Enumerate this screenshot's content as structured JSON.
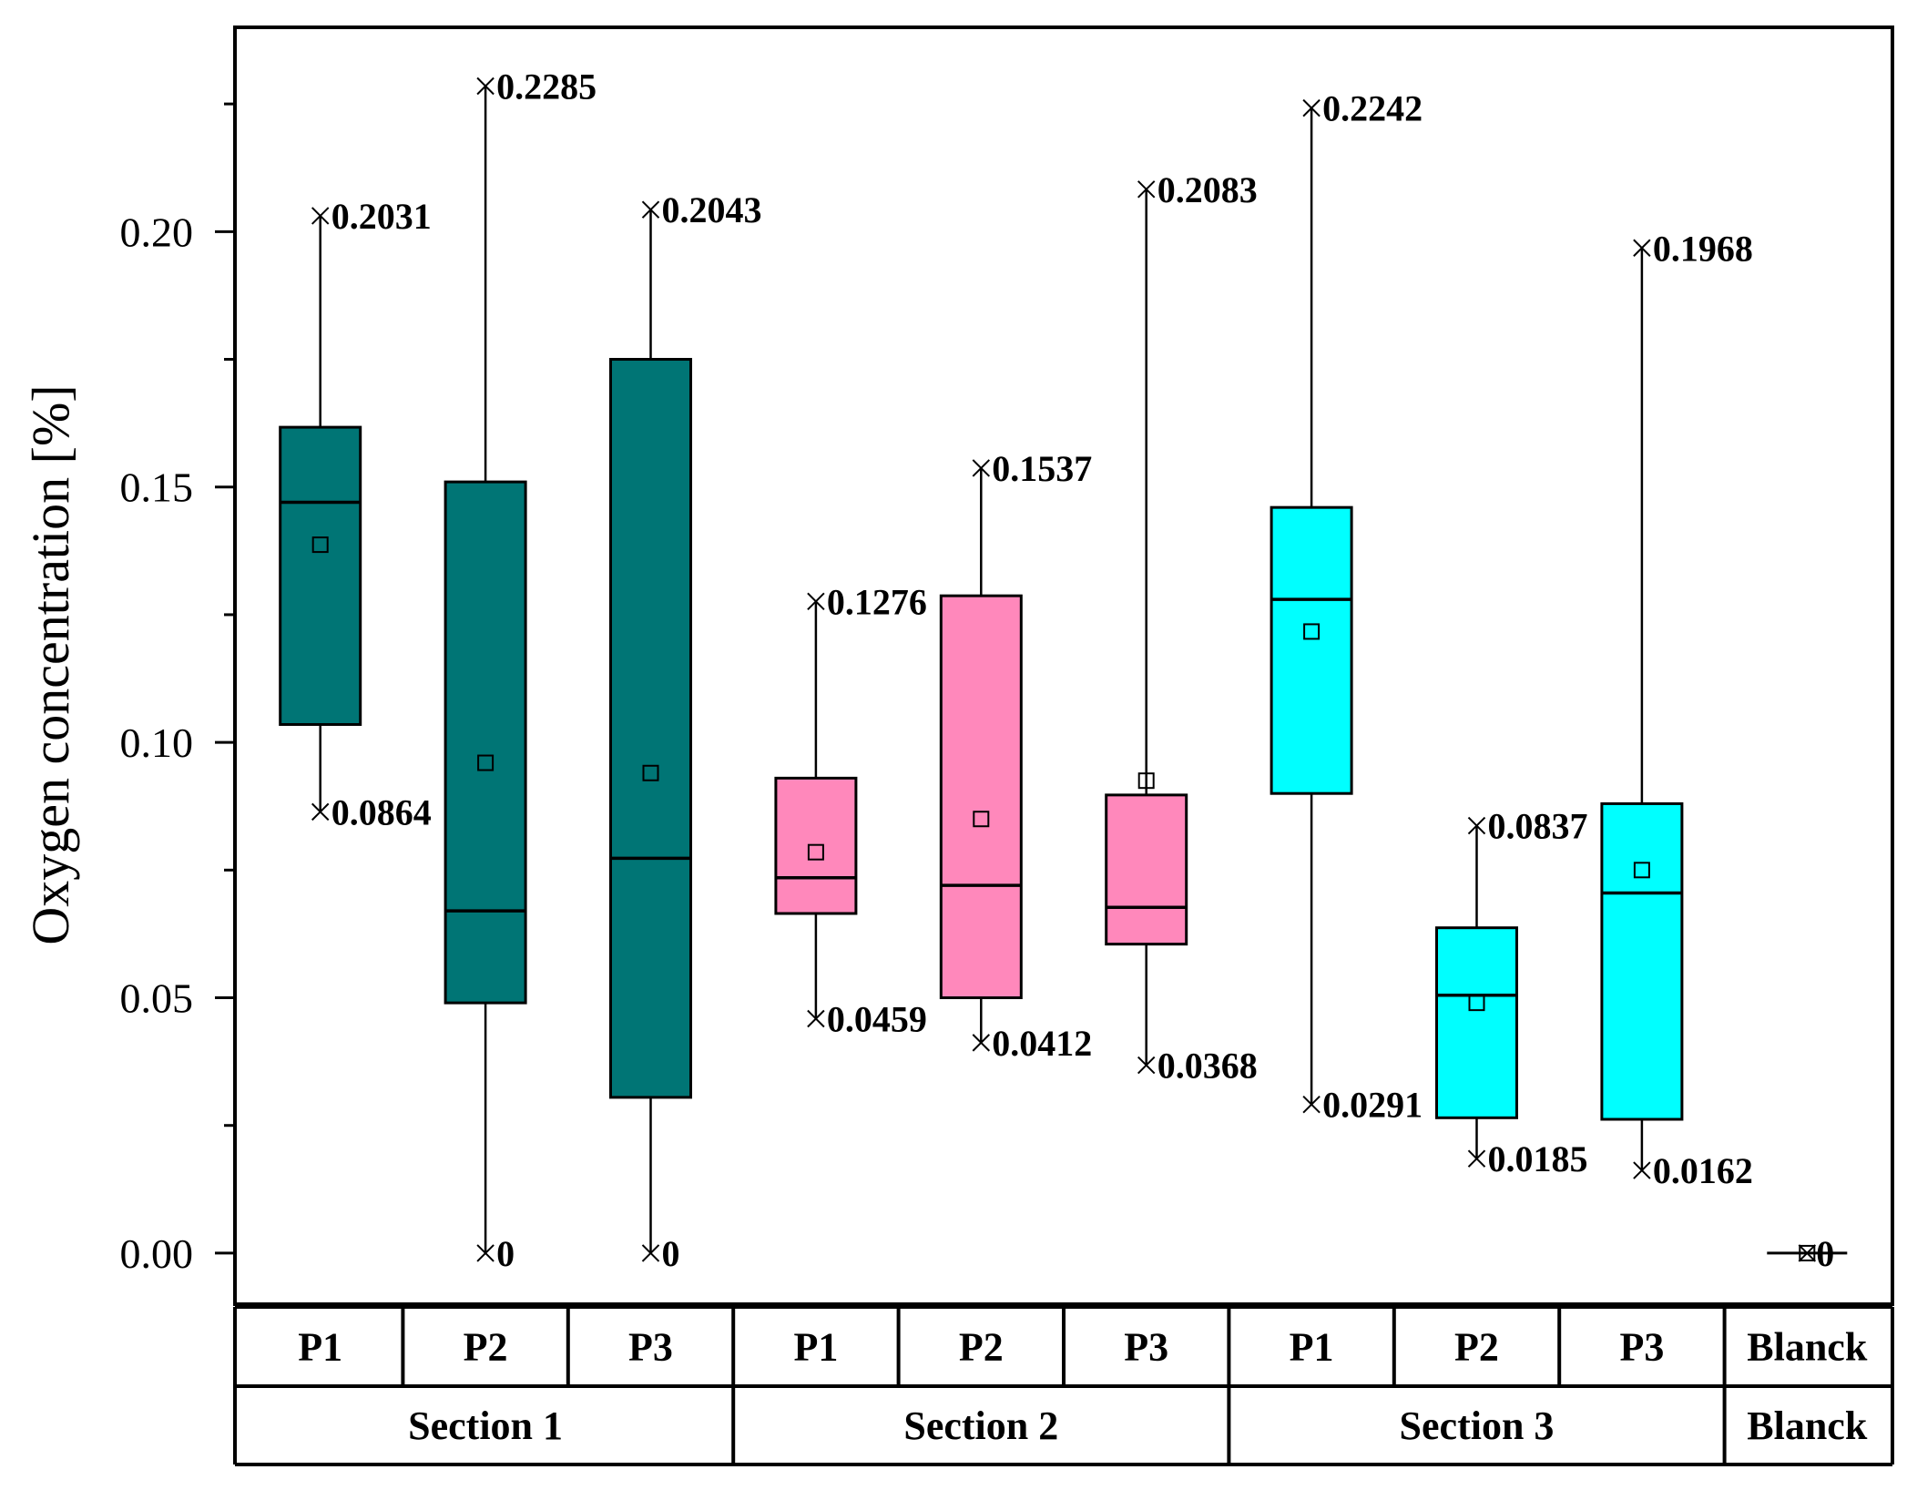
{
  "chart_data": {
    "type": "box",
    "ylabel": "Oxygen concentration [%]",
    "ylim": [
      -0.01,
      0.24
    ],
    "yticks": [
      0.0,
      0.05,
      0.1,
      0.15,
      0.2
    ],
    "ytick_labels": [
      "0.00",
      "0.05",
      "0.10",
      "0.15",
      "0.20"
    ],
    "colors": {
      "Section 1": "#007575",
      "Section 2": "#ff88bb",
      "Section 3": "#00ffff",
      "Blanck": "#ffffff"
    },
    "boxes": [
      {
        "position": "P1",
        "group": "Section 1",
        "min": 0.0864,
        "q1": 0.1035,
        "median": 0.147,
        "q3": 0.1617,
        "max": 0.2031,
        "mean": 0.1387,
        "min_label": "0.0864",
        "max_label": "0.2031"
      },
      {
        "position": "P2",
        "group": "Section 1",
        "min": 0,
        "q1": 0.049,
        "median": 0.067,
        "q3": 0.151,
        "max": 0.2285,
        "mean": 0.096,
        "min_label": "0",
        "max_label": "0.2285"
      },
      {
        "position": "P3",
        "group": "Section 1",
        "min": 0,
        "q1": 0.0305,
        "median": 0.0773,
        "q3": 0.175,
        "max": 0.2043,
        "mean": 0.094,
        "min_label": "0",
        "max_label": "0.2043"
      },
      {
        "position": "P1",
        "group": "Section 2",
        "min": 0.0459,
        "q1": 0.0665,
        "median": 0.0735,
        "q3": 0.093,
        "max": 0.1276,
        "mean": 0.0785,
        "min_label": "0.0459",
        "max_label": "0.1276"
      },
      {
        "position": "P2",
        "group": "Section 2",
        "min": 0.0412,
        "q1": 0.05,
        "median": 0.072,
        "q3": 0.1287,
        "max": 0.1537,
        "mean": 0.085,
        "min_label": "0.0412",
        "max_label": "0.1537"
      },
      {
        "position": "P3",
        "group": "Section 2",
        "min": 0.0368,
        "q1": 0.0605,
        "median": 0.0677,
        "q3": 0.0897,
        "max": 0.2083,
        "mean": 0.0925,
        "min_label": "0.0368",
        "max_label": "0.2083"
      },
      {
        "position": "P1",
        "group": "Section 3",
        "min": 0.0291,
        "q1": 0.09,
        "median": 0.128,
        "q3": 0.146,
        "max": 0.2242,
        "mean": 0.1217,
        "min_label": "0.0291",
        "max_label": "0.2242"
      },
      {
        "position": "P2",
        "group": "Section 3",
        "min": 0.0185,
        "q1": 0.0265,
        "median": 0.0505,
        "q3": 0.0637,
        "max": 0.0837,
        "mean": 0.049,
        "min_label": "0.0185",
        "max_label": "0.0837"
      },
      {
        "position": "P3",
        "group": "Section 3",
        "min": 0.0162,
        "q1": 0.0262,
        "median": 0.0705,
        "q3": 0.088,
        "max": 0.1968,
        "mean": 0.075,
        "min_label": "0.0162",
        "max_label": "0.1968"
      },
      {
        "position": "Blanck",
        "group": "Blanck",
        "min": 0,
        "q1": 0,
        "median": 0,
        "q3": 0,
        "max": 0,
        "mean": 0,
        "min_label": "",
        "max_label": "0"
      }
    ],
    "groups": [
      {
        "label": "Section 1",
        "span": 3
      },
      {
        "label": "Section 2",
        "span": 3
      },
      {
        "label": "Section 3",
        "span": 3
      },
      {
        "label": "Blanck",
        "span": 1
      }
    ]
  }
}
